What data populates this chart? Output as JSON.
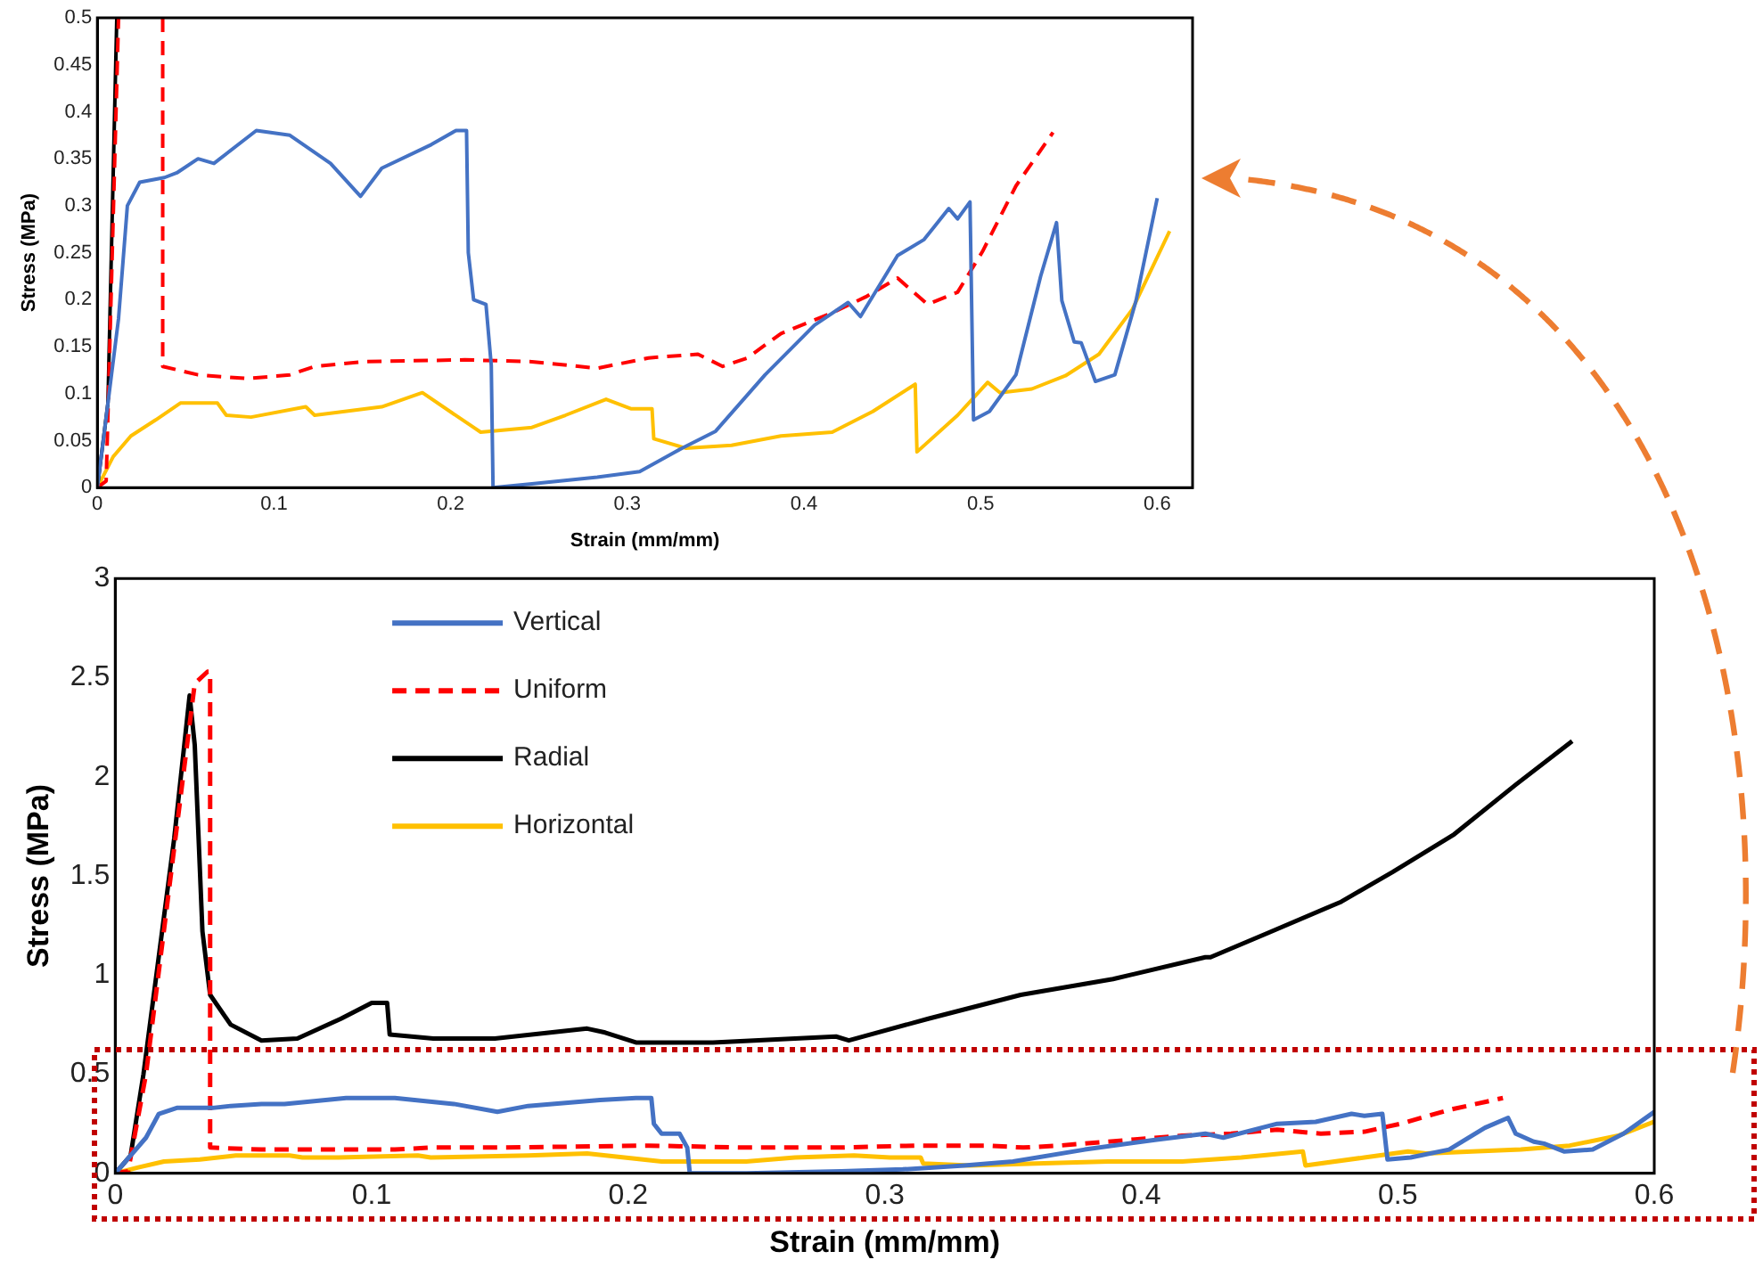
{
  "chart_data": [
    {
      "type": "line",
      "xlabel": "Strain (mm/mm)",
      "ylabel": "Stress (MPa)",
      "xlim": [
        0,
        0.62
      ],
      "xticks": [
        0,
        0.1,
        0.2,
        0.3,
        0.4,
        0.5,
        0.6
      ],
      "ylim": [
        0,
        0.5
      ],
      "yticks": [
        0,
        0.05,
        0.1,
        0.15,
        0.2,
        0.25,
        0.3,
        0.35,
        0.4,
        0.45,
        0.5
      ],
      "grid": false,
      "legend": false,
      "marker": "none",
      "series": [
        {
          "color": "#4472c4",
          "line_style": "solid",
          "x": [
            0,
            0.012,
            0.017,
            0.024,
            0.038,
            0.045,
            0.057,
            0.066,
            0.09,
            0.109,
            0.132,
            0.149,
            0.161,
            0.189,
            0.203,
            0.209,
            0.21,
            0.213,
            0.22,
            0.223,
            0.224,
            0.246,
            0.283,
            0.307,
            0.331,
            0.35,
            0.378,
            0.406,
            0.425,
            0.432,
            0.453,
            0.468,
            0.482,
            0.487,
            0.494,
            0.496,
            0.505,
            0.52,
            0.534,
            0.543,
            0.546,
            0.553,
            0.557,
            0.565,
            0.576,
            0.588,
            0.6
          ],
          "values": [
            0,
            0.18,
            0.3,
            0.325,
            0.33,
            0.335,
            0.35,
            0.345,
            0.38,
            0.375,
            0.345,
            0.31,
            0.34,
            0.365,
            0.38,
            0.38,
            0.25,
            0.2,
            0.195,
            0.13,
            0,
            0.004,
            0.011,
            0.017,
            0.042,
            0.06,
            0.12,
            0.173,
            0.197,
            0.182,
            0.247,
            0.264,
            0.297,
            0.286,
            0.304,
            0.072,
            0.081,
            0.12,
            0.225,
            0.282,
            0.199,
            0.155,
            0.154,
            0.113,
            0.12,
            0.199,
            0.308
          ]
        },
        {
          "color": "#ff0000",
          "line_style": "dashed",
          "x": [
            0,
            0.005,
            0.012,
            0.02,
            0.037,
            0.037,
            0.057,
            0.085,
            0.109,
            0.123,
            0.151,
            0.208,
            0.246,
            0.283,
            0.312,
            0.34,
            0.354,
            0.368,
            0.387,
            0.416,
            0.435,
            0.453,
            0.47,
            0.487,
            0.501,
            0.52,
            0.541
          ],
          "values": [
            0,
            0.007,
            0.5,
            null,
            0.5,
            0.129,
            0.12,
            0.116,
            0.12,
            0.129,
            0.134,
            0.136,
            0.134,
            0.127,
            0.138,
            0.142,
            0.129,
            0.138,
            0.164,
            0.186,
            0.203,
            0.223,
            0.195,
            0.208,
            0.251,
            0.321,
            0.378
          ]
        },
        {
          "color": "#000000",
          "line_style": "solid",
          "x": [
            0,
            0.006,
            0.011
          ],
          "values": [
            0,
            0.09,
            0.5
          ]
        },
        {
          "color": "#ffc000",
          "line_style": "solid",
          "x": [
            0,
            0.009,
            0.019,
            0.033,
            0.047,
            0.068,
            0.073,
            0.087,
            0.118,
            0.123,
            0.161,
            0.184,
            0.213,
            0.217,
            0.246,
            0.265,
            0.288,
            0.302,
            0.314,
            0.315,
            0.333,
            0.359,
            0.387,
            0.416,
            0.439,
            0.463,
            0.464,
            0.487,
            0.504,
            0.511,
            0.529,
            0.548,
            0.567,
            0.586,
            0.607
          ],
          "values": [
            0,
            0.033,
            0.055,
            0.072,
            0.09,
            0.09,
            0.077,
            0.075,
            0.086,
            0.077,
            0.086,
            0.101,
            0.064,
            0.059,
            0.064,
            0.077,
            0.094,
            0.084,
            0.084,
            0.052,
            0.042,
            0.045,
            0.055,
            0.059,
            0.081,
            0.11,
            0.038,
            0.077,
            0.112,
            0.101,
            0.105,
            0.119,
            0.142,
            0.19,
            0.273
          ]
        }
      ]
    },
    {
      "type": "line",
      "xlabel": "Strain (mm/mm)",
      "ylabel": "Stress (MPa)",
      "xlim": [
        0,
        0.6
      ],
      "xticks": [
        0,
        0.1,
        0.2,
        0.3,
        0.4,
        0.5,
        0.6
      ],
      "ylim": [
        0,
        3
      ],
      "yticks": [
        0,
        0.5,
        1,
        1.5,
        2,
        2.5,
        3
      ],
      "grid": false,
      "legend": "top left",
      "marker": "none",
      "series": [
        {
          "name": "Vertical",
          "color": "#4472c4",
          "line_style": "solid",
          "x": [
            0,
            0.012,
            0.017,
            0.024,
            0.038,
            0.045,
            0.057,
            0.066,
            0.09,
            0.109,
            0.132,
            0.149,
            0.161,
            0.189,
            0.203,
            0.209,
            0.21,
            0.213,
            0.22,
            0.223,
            0.224,
            0.246,
            0.283,
            0.307,
            0.331,
            0.35,
            0.378,
            0.406,
            0.425,
            0.432,
            0.453,
            0.468,
            0.482,
            0.487,
            0.494,
            0.496,
            0.505,
            0.52,
            0.534,
            0.543,
            0.546,
            0.553,
            0.557,
            0.565,
            0.576,
            0.588,
            0.6
          ],
          "values": [
            0,
            0.18,
            0.3,
            0.33,
            0.33,
            0.34,
            0.35,
            0.35,
            0.38,
            0.38,
            0.35,
            0.31,
            0.34,
            0.37,
            0.38,
            0.38,
            0.25,
            0.2,
            0.2,
            0.13,
            0,
            0,
            0.01,
            0.02,
            0.04,
            0.06,
            0.12,
            0.17,
            0.2,
            0.18,
            0.25,
            0.26,
            0.3,
            0.29,
            0.3,
            0.07,
            0.08,
            0.12,
            0.23,
            0.28,
            0.2,
            0.16,
            0.15,
            0.11,
            0.12,
            0.2,
            0.31
          ]
        },
        {
          "name": "Uniform",
          "color": "#ff0000",
          "line_style": "dashed",
          "x": [
            0,
            0.005,
            0.012,
            0.028,
            0.031,
            0.036,
            0.037,
            0.037,
            0.057,
            0.085,
            0.109,
            0.123,
            0.151,
            0.208,
            0.246,
            0.283,
            0.312,
            0.34,
            0.354,
            0.368,
            0.387,
            0.416,
            0.435,
            0.453,
            0.47,
            0.487,
            0.501,
            0.52,
            0.541
          ],
          "values": [
            0,
            0.01,
            0.5,
            2.16,
            2.47,
            2.53,
            2.53,
            0.13,
            0.12,
            0.12,
            0.12,
            0.13,
            0.13,
            0.14,
            0.13,
            0.13,
            0.14,
            0.14,
            0.13,
            0.14,
            0.16,
            0.19,
            0.2,
            0.22,
            0.2,
            0.21,
            0.25,
            0.32,
            0.38
          ]
        },
        {
          "name": "Radial",
          "color": "#000000",
          "line_style": "solid",
          "x": [
            0,
            0.006,
            0.011,
            0.023,
            0.029,
            0.031,
            0.034,
            0.037,
            0.045,
            0.057,
            0.071,
            0.088,
            0.1,
            0.106,
            0.107,
            0.124,
            0.148,
            0.184,
            0.191,
            0.203,
            0.233,
            0.281,
            0.286,
            0.317,
            0.353,
            0.389,
            0.425,
            0.427,
            0.449,
            0.478,
            0.498,
            0.522,
            0.546,
            0.568
          ],
          "values": [
            0,
            0.09,
            0.5,
            1.69,
            2.41,
            2.16,
            1.22,
            0.9,
            0.75,
            0.67,
            0.68,
            0.78,
            0.86,
            0.86,
            0.7,
            0.68,
            0.68,
            0.73,
            0.71,
            0.66,
            0.66,
            0.69,
            0.67,
            0.78,
            0.9,
            0.98,
            1.09,
            1.09,
            1.21,
            1.37,
            1.52,
            1.71,
            1.96,
            2.18
          ]
        },
        {
          "name": "Horizontal",
          "color": "#ffc000",
          "line_style": "solid",
          "x": [
            0,
            0.009,
            0.019,
            0.033,
            0.047,
            0.068,
            0.073,
            0.087,
            0.118,
            0.123,
            0.161,
            0.184,
            0.213,
            0.217,
            0.246,
            0.265,
            0.288,
            0.302,
            0.314,
            0.315,
            0.333,
            0.359,
            0.387,
            0.416,
            0.439,
            0.463,
            0.464,
            0.487,
            0.504,
            0.511,
            0.529,
            0.548,
            0.567,
            0.586,
            0.6
          ],
          "values": [
            0,
            0.03,
            0.06,
            0.07,
            0.09,
            0.09,
            0.08,
            0.08,
            0.09,
            0.08,
            0.09,
            0.1,
            0.06,
            0.06,
            0.06,
            0.08,
            0.09,
            0.08,
            0.08,
            0.05,
            0.04,
            0.05,
            0.06,
            0.06,
            0.08,
            0.11,
            0.04,
            0.08,
            0.11,
            0.1,
            0.11,
            0.12,
            0.14,
            0.19,
            0.26
          ]
        }
      ]
    }
  ]
}
